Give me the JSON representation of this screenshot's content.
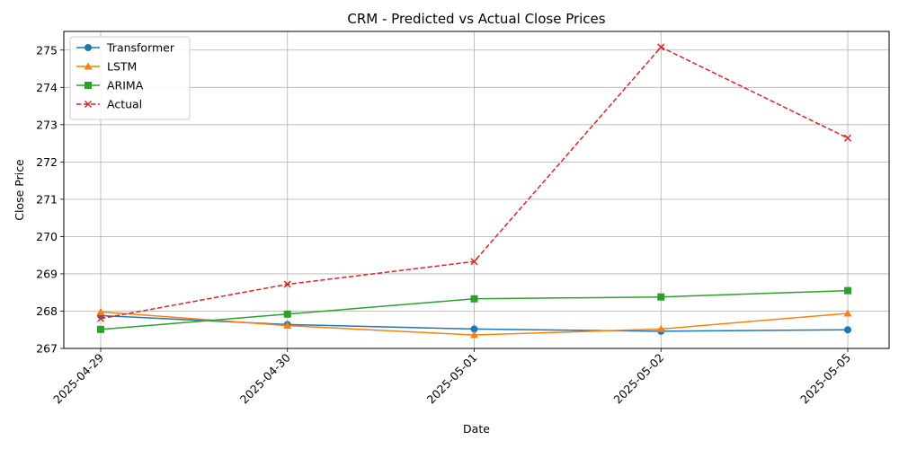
{
  "chart_data": {
    "type": "line",
    "title": "CRM - Predicted vs Actual Close Prices",
    "xlabel": "Date",
    "ylabel": "Close Price",
    "categories": [
      "2025-04-29",
      "2025-04-30",
      "2025-05-01",
      "2025-05-02",
      "2025-05-05"
    ],
    "ylim": [
      267,
      275.5
    ],
    "yticks": [
      267,
      268,
      269,
      270,
      271,
      272,
      273,
      274,
      275
    ],
    "grid": true,
    "legend_position": "top-left",
    "series": [
      {
        "name": "Transformer",
        "color": "#1f77b4",
        "marker": "circle",
        "dash": "solid",
        "values": [
          267.88,
          267.64,
          267.52,
          267.46,
          267.5
        ]
      },
      {
        "name": "LSTM",
        "color": "#ff7f0e",
        "marker": "triangle",
        "dash": "solid",
        "values": [
          267.98,
          267.61,
          267.36,
          267.52,
          267.94
        ]
      },
      {
        "name": "ARIMA",
        "color": "#2ca02c",
        "marker": "square",
        "dash": "solid",
        "values": [
          267.51,
          267.92,
          268.33,
          268.38,
          268.55
        ]
      },
      {
        "name": "Actual",
        "color": "#d62728",
        "marker": "x",
        "dash": "dashed",
        "values": [
          267.8,
          268.72,
          269.33,
          275.08,
          272.64
        ]
      }
    ]
  }
}
